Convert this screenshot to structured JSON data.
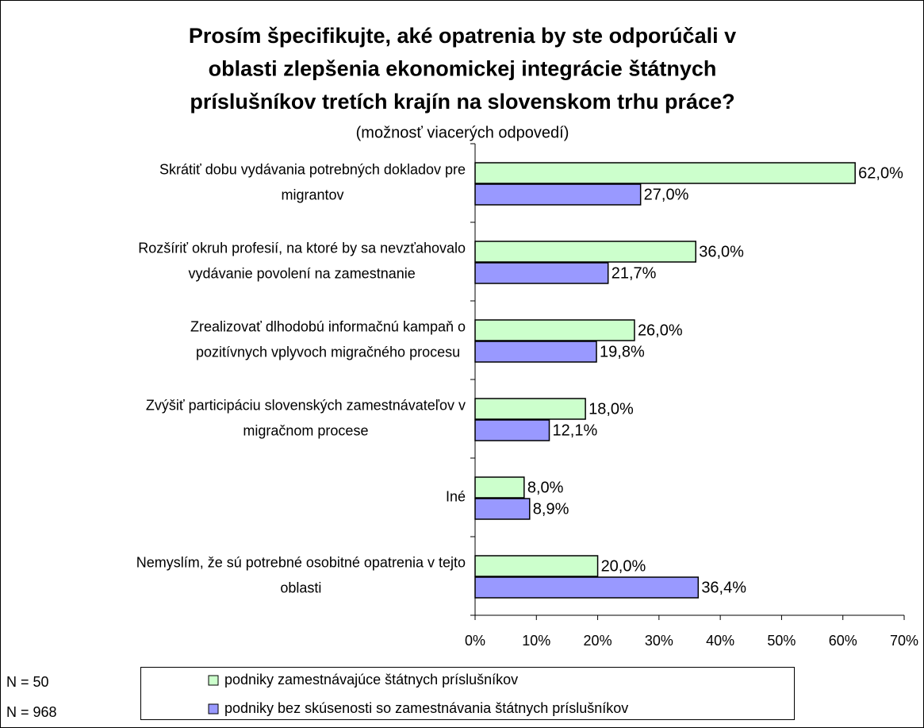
{
  "chart_data": {
    "type": "hbar",
    "title": [
      "Prosím špecifikujte, aké opatrenia by ste odporúčali v",
      "oblasti zlepšenia ekonomickej integrácie štátnych",
      "príslušníkov tretích krajín na slovenskom trhu práce?"
    ],
    "subtitle": "(možnosť viacerých odpovedí)",
    "categories": [
      [
        "Skrátiť dobu vydávania potrebných dokladov pre",
        "migrantov"
      ],
      [
        "Rozšíriť okruh profesií, na ktoré by sa nevzťahovalo",
        "vydávanie povolení na zamestnanie"
      ],
      [
        "Zrealizovať dlhodobú informačnú kampaň o",
        "pozitívnych vplyvoch migračného procesu"
      ],
      [
        "Zvýšiť participáciu slovenských zamestnávateľov v",
        "migračnom procese"
      ],
      [
        "Iné"
      ],
      [
        "Nemyslím, že sú potrebné osobitné opatrenia v tejto",
        "oblasti"
      ]
    ],
    "series": [
      {
        "name": "podniky zamestnávajúce štátnych príslušníkov",
        "color": "#ccffcc",
        "values": [
          62.0,
          36.0,
          26.0,
          18.0,
          8.0,
          20.0
        ],
        "value_labels": [
          "62,0%",
          "36,0%",
          "26,0%",
          "18,0%",
          "8,0%",
          "20,0%"
        ]
      },
      {
        "name": "podniky bez skúsenosti so zamestnávania štátnych príslušníkov",
        "color": "#9999ff",
        "values": [
          27.0,
          21.7,
          19.8,
          12.1,
          8.9,
          36.4
        ],
        "value_labels": [
          "27,0%",
          "21,7%",
          "19,8%",
          "12,1%",
          "8,9%",
          "36,4%"
        ]
      }
    ],
    "xlim": [
      0,
      70
    ],
    "xticks": [
      {
        "value": 0,
        "label": "0%"
      },
      {
        "value": 10,
        "label": "10%"
      },
      {
        "value": 20,
        "label": "20%"
      },
      {
        "value": 30,
        "label": "30%"
      },
      {
        "value": 40,
        "label": "40%"
      },
      {
        "value": 50,
        "label": "50%"
      },
      {
        "value": 60,
        "label": "60%"
      },
      {
        "value": 70,
        "label": "70%"
      }
    ],
    "sample_sizes": [
      "N = 50",
      "N = 968"
    ]
  }
}
